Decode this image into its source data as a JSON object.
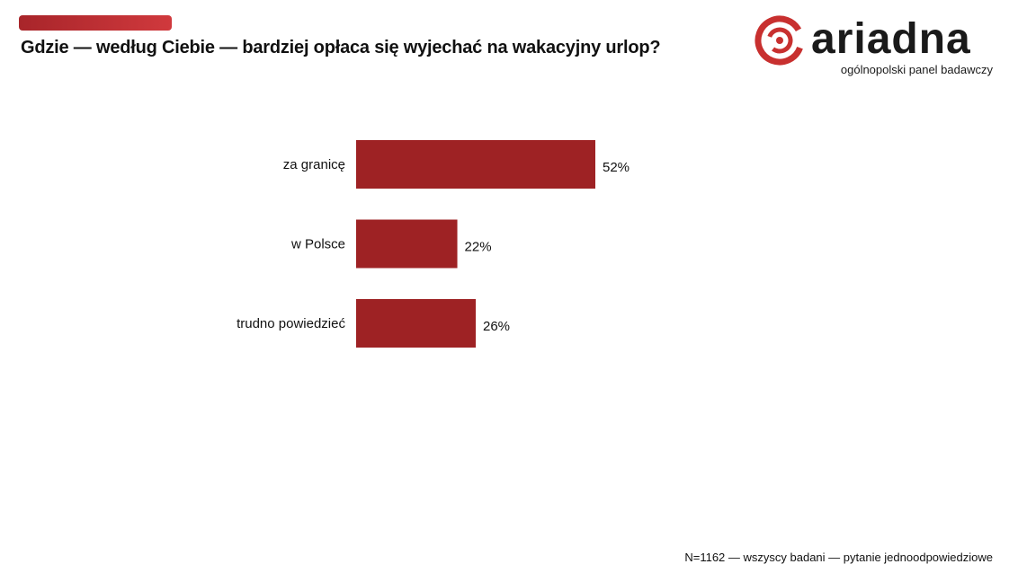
{
  "header": {
    "title": "Gdzie — według Ciebie — bardziej opłaca się wyjechać na wakacyjny urlop?"
  },
  "logo": {
    "wordmark": "ariadna",
    "tagline": "ogólnopolski panel badawczy",
    "icon": "ariadna-spiral-icon"
  },
  "colors": {
    "accent": "#b3282d",
    "bar": "#9e2224",
    "text": "#111111"
  },
  "chart_data": {
    "type": "bar",
    "orientation": "horizontal",
    "title": "Gdzie — według Ciebie — bardziej opłaca się wyjechać na wakacyjny urlop?",
    "categories": [
      "za granicę",
      "w Polsce",
      "trudno powiedzieć"
    ],
    "values": [
      52,
      22,
      26
    ],
    "value_labels": [
      "52%",
      "22%",
      "26%"
    ],
    "unit": "%",
    "xlim": [
      0,
      100
    ],
    "grid": false,
    "legend": "none"
  },
  "footer": {
    "note": "N=1162 — wszyscy badani — pytanie jednoodpowiedziowe"
  }
}
